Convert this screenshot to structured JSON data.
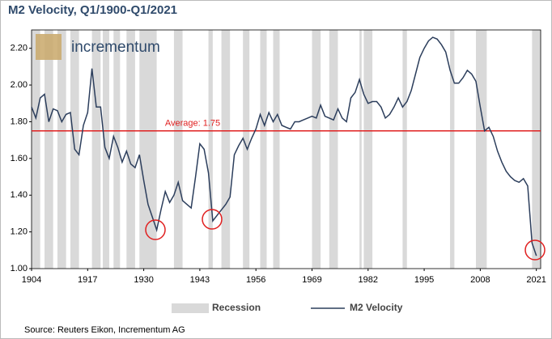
{
  "chart_data": {
    "type": "line",
    "title": "M2 Velocity, Q1/1900-Q1/2021",
    "logo": "incrementum",
    "source": "Source: Reuters Eikon, Incrementum AG",
    "x": [
      1904,
      1905,
      1906,
      1907,
      1908,
      1909,
      1910,
      1911,
      1912,
      1913,
      1914,
      1915,
      1916,
      1917,
      1918,
      1919,
      1920,
      1921,
      1922,
      1923,
      1924,
      1925,
      1926,
      1927,
      1928,
      1929,
      1930,
      1931,
      1932,
      1933,
      1934,
      1935,
      1936,
      1937,
      1938,
      1939,
      1940,
      1941,
      1942,
      1943,
      1944,
      1945,
      1946,
      1947,
      1948,
      1949,
      1950,
      1951,
      1952,
      1953,
      1954,
      1955,
      1956,
      1957,
      1958,
      1959,
      1960,
      1961,
      1962,
      1963,
      1964,
      1965,
      1966,
      1967,
      1968,
      1969,
      1970,
      1971,
      1972,
      1973,
      1974,
      1975,
      1976,
      1977,
      1978,
      1979,
      1980,
      1981,
      1982,
      1983,
      1984,
      1985,
      1986,
      1987,
      1988,
      1989,
      1990,
      1991,
      1992,
      1993,
      1994,
      1995,
      1996,
      1997,
      1998,
      1999,
      2000,
      2001,
      2002,
      2003,
      2004,
      2005,
      2006,
      2007,
      2008,
      2009,
      2010,
      2011,
      2012,
      2013,
      2014,
      2015,
      2016,
      2017,
      2018,
      2019,
      2020,
      2021
    ],
    "series": [
      {
        "name": "M2 Velocity",
        "color": "#2c3e5c",
        "values": [
          1.88,
          1.82,
          1.93,
          1.95,
          1.8,
          1.87,
          1.86,
          1.8,
          1.84,
          1.85,
          1.65,
          1.62,
          1.78,
          1.85,
          2.09,
          1.88,
          1.88,
          1.66,
          1.6,
          1.72,
          1.66,
          1.58,
          1.64,
          1.57,
          1.55,
          1.62,
          1.48,
          1.35,
          1.28,
          1.21,
          1.32,
          1.42,
          1.36,
          1.4,
          1.47,
          1.37,
          1.35,
          1.33,
          1.5,
          1.68,
          1.65,
          1.52,
          1.26,
          1.29,
          1.32,
          1.35,
          1.39,
          1.62,
          1.67,
          1.71,
          1.65,
          1.71,
          1.76,
          1.84,
          1.78,
          1.85,
          1.8,
          1.84,
          1.78,
          1.77,
          1.76,
          1.8,
          1.8,
          1.81,
          1.82,
          1.83,
          1.82,
          1.89,
          1.83,
          1.82,
          1.81,
          1.87,
          1.82,
          1.8,
          1.93,
          1.96,
          2.03,
          1.95,
          1.9,
          1.91,
          1.91,
          1.88,
          1.82,
          1.84,
          1.88,
          1.93,
          1.88,
          1.91,
          1.97,
          2.06,
          2.15,
          2.2,
          2.24,
          2.26,
          2.25,
          2.22,
          2.18,
          2.08,
          2.01,
          2.01,
          2.04,
          2.08,
          2.06,
          2.02,
          1.88,
          1.75,
          1.77,
          1.72,
          1.64,
          1.58,
          1.53,
          1.5,
          1.48,
          1.47,
          1.49,
          1.45,
          1.14,
          1.07
        ]
      }
    ],
    "recessions": {
      "name": "Recession",
      "color": "#d9d9d9",
      "spans": [
        [
          1904,
          1906
        ],
        [
          1907,
          1909
        ],
        [
          1910,
          1912
        ],
        [
          1913,
          1915
        ],
        [
          1918,
          1920
        ],
        [
          1920.5,
          1922
        ],
        [
          1923,
          1924.5
        ],
        [
          1926,
          1928
        ],
        [
          1929,
          1933
        ],
        [
          1937,
          1939
        ],
        [
          1945,
          1946
        ],
        [
          1948,
          1950
        ],
        [
          1953,
          1954.5
        ],
        [
          1957,
          1958.5
        ],
        [
          1960,
          1961.5
        ],
        [
          1969,
          1971
        ],
        [
          1973,
          1975
        ],
        [
          1980,
          1980.5
        ],
        [
          1981,
          1983
        ],
        [
          1990,
          1991
        ],
        [
          2001,
          2002
        ],
        [
          2007,
          2009.5
        ],
        [
          2020,
          2022
        ]
      ]
    },
    "average": {
      "value": 1.75,
      "label": "Average: 1.75",
      "color": "#e02020"
    },
    "xlim": [
      1904,
      2022
    ],
    "xticks": [
      1904,
      1917,
      1930,
      1943,
      1956,
      1969,
      1982,
      1995,
      2008,
      2021
    ],
    "ylim": [
      1.0,
      2.3
    ],
    "yticks": [
      {
        "value": 1.0,
        "label": "1.00"
      },
      {
        "value": 1.2,
        "label": "1.20"
      },
      {
        "value": 1.4,
        "label": "1.40"
      },
      {
        "value": 1.6,
        "label": "1.60"
      },
      {
        "value": 1.8,
        "label": "1.80"
      },
      {
        "value": 2.0,
        "label": "2.00"
      },
      {
        "value": 2.2,
        "label": "2.20"
      }
    ]
  }
}
